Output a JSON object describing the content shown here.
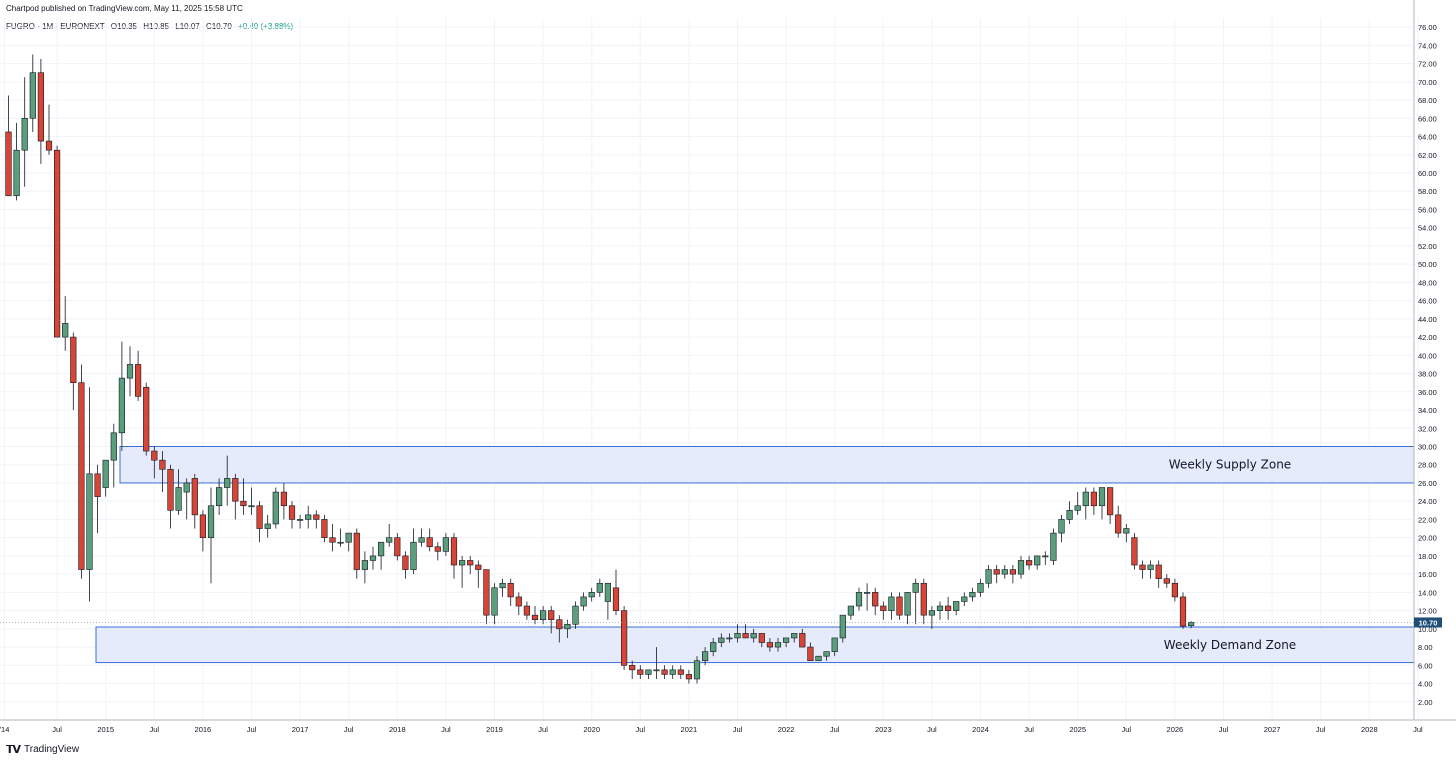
{
  "header": {
    "publisher": "Chartpod published on TradingView.com, May 11, 2025 15:58 UTC",
    "symbol": "FUGRO · 1M · EURONEXT",
    "open": "O10.35",
    "high": "H10.85",
    "low": "L10.07",
    "close": "C10.70",
    "change": "+0.40 (+3.88%)"
  },
  "footer": {
    "logo_mark": "𝗧𝗩",
    "logo_text": "TradingView"
  },
  "colors": {
    "up": "#5b9e7c",
    "down": "#d64536",
    "grid": "#f0f3fa",
    "zone_fill": "#e6ebfb",
    "zone_border": "#3a6fd6",
    "price_tag": "#1f4e79"
  },
  "chart_data": {
    "type": "candlestick",
    "title": "",
    "y_ticks": [
      "2.00",
      "4.00",
      "6.00",
      "8.00",
      "10.00",
      "12.00",
      "14.00",
      "16.00",
      "18.00",
      "20.00",
      "22.00",
      "24.00",
      "26.00",
      "28.00",
      "30.00",
      "32.00",
      "34.00",
      "36.00",
      "38.00",
      "40.00",
      "42.00",
      "44.00",
      "46.00",
      "48.00",
      "50.00",
      "52.00",
      "54.00",
      "56.00",
      "58.00",
      "60.00",
      "62.00",
      "64.00",
      "66.00",
      "68.00",
      "70.00",
      "72.00",
      "74.00",
      "76.00"
    ],
    "ylim": [
      0,
      77
    ],
    "x_ticks": [
      "'14",
      "Jul",
      "2015",
      "Jul",
      "2016",
      "Jul",
      "2017",
      "Jul",
      "2018",
      "Jul",
      "2019",
      "Jul",
      "2020",
      "Jul",
      "2021",
      "Jul",
      "2022",
      "Jul",
      "2023",
      "Jul",
      "2024",
      "Jul",
      "2025",
      "Jul",
      "2026",
      "Jul",
      "2027",
      "Jul",
      "2028",
      "Jul"
    ],
    "last_price": "10.70",
    "zones": [
      {
        "label": "Weekly Supply Zone",
        "low": 26.0,
        "high": 30.0
      },
      {
        "label": "Weekly Demand Zone",
        "low": 6.3,
        "high": 10.2
      }
    ],
    "candles": [
      [
        64.5,
        68.5,
        57.5,
        57.5
      ],
      [
        57.5,
        65.5,
        57.0,
        62.5
      ],
      [
        62.5,
        70.5,
        58.5,
        66.0
      ],
      [
        66.0,
        73.0,
        64.5,
        71.0
      ],
      [
        71.0,
        72.5,
        61.0,
        63.5
      ],
      [
        63.5,
        67.5,
        62.0,
        62.5
      ],
      [
        62.5,
        63.0,
        42.0,
        42.0
      ],
      [
        42.0,
        46.5,
        40.5,
        43.5
      ],
      [
        42.0,
        42.5,
        34.0,
        37.0
      ],
      [
        37.0,
        39.0,
        15.5,
        16.5
      ],
      [
        16.5,
        36.5,
        13.0,
        27.0
      ],
      [
        27.0,
        28.0,
        20.5,
        24.5
      ],
      [
        25.5,
        28.0,
        24.5,
        28.5
      ],
      [
        28.5,
        32.5,
        25.5,
        31.5
      ],
      [
        31.5,
        41.5,
        29.5,
        37.5
      ],
      [
        37.5,
        41.0,
        35.5,
        39.0
      ],
      [
        39.0,
        40.5,
        35.0,
        35.5
      ],
      [
        36.5,
        37.0,
        29.0,
        29.5
      ],
      [
        29.5,
        30.0,
        26.5,
        28.5
      ],
      [
        28.5,
        29.5,
        25.0,
        27.5
      ],
      [
        27.5,
        28.0,
        21.0,
        23.0
      ],
      [
        23.0,
        27.5,
        22.5,
        25.5
      ],
      [
        25.0,
        26.5,
        22.0,
        26.0
      ],
      [
        26.5,
        27.0,
        21.0,
        22.5
      ],
      [
        22.5,
        23.0,
        18.5,
        20.0
      ],
      [
        20.0,
        25.5,
        15.0,
        23.5
      ],
      [
        23.5,
        26.5,
        22.5,
        25.5
      ],
      [
        25.5,
        29.0,
        23.5,
        26.5
      ],
      [
        26.5,
        27.0,
        22.0,
        24.0
      ],
      [
        24.0,
        26.5,
        22.5,
        23.5
      ],
      [
        23.5,
        25.5,
        22.5,
        23.5
      ],
      [
        23.5,
        24.0,
        19.5,
        21.0
      ],
      [
        21.0,
        22.5,
        20.0,
        21.5
      ],
      [
        21.5,
        25.5,
        21.0,
        25.0
      ],
      [
        25.0,
        26.0,
        22.0,
        23.5
      ],
      [
        23.5,
        24.0,
        21.0,
        22.0
      ],
      [
        22.0,
        22.5,
        21.0,
        22.0
      ],
      [
        22.0,
        23.5,
        21.0,
        22.5
      ],
      [
        22.5,
        23.0,
        21.0,
        22.0
      ],
      [
        22.0,
        22.5,
        19.5,
        20.0
      ],
      [
        20.0,
        21.5,
        18.5,
        19.5
      ],
      [
        19.5,
        21.0,
        19.0,
        19.5
      ],
      [
        19.5,
        20.0,
        18.5,
        20.5
      ],
      [
        20.5,
        21.0,
        15.5,
        16.5
      ],
      [
        16.5,
        18.5,
        15.0,
        17.5
      ],
      [
        17.5,
        19.0,
        16.5,
        18.0
      ],
      [
        18.0,
        19.5,
        16.5,
        19.5
      ],
      [
        19.5,
        21.5,
        19.0,
        20.0
      ],
      [
        20.0,
        20.5,
        17.5,
        18.0
      ],
      [
        18.0,
        18.5,
        15.5,
        16.5
      ],
      [
        16.5,
        21.0,
        16.0,
        19.5
      ],
      [
        19.5,
        21.0,
        19.0,
        20.0
      ],
      [
        20.0,
        21.0,
        18.5,
        19.0
      ],
      [
        19.0,
        19.5,
        17.5,
        18.5
      ],
      [
        18.5,
        20.5,
        18.0,
        20.0
      ],
      [
        20.0,
        20.5,
        15.5,
        17.0
      ],
      [
        17.0,
        18.0,
        14.5,
        17.5
      ],
      [
        17.5,
        18.0,
        16.0,
        17.0
      ],
      [
        17.0,
        17.5,
        14.5,
        16.5
      ],
      [
        16.5,
        16.5,
        10.5,
        11.5
      ],
      [
        11.5,
        15.0,
        10.5,
        14.5
      ],
      [
        14.5,
        15.5,
        13.5,
        15.0
      ],
      [
        15.0,
        15.5,
        12.5,
        13.5
      ],
      [
        13.5,
        14.0,
        11.5,
        12.5
      ],
      [
        12.5,
        13.0,
        11.0,
        11.5
      ],
      [
        11.5,
        12.5,
        10.5,
        11.0
      ],
      [
        11.0,
        12.5,
        10.5,
        12.0
      ],
      [
        12.0,
        12.5,
        9.5,
        11.0
      ],
      [
        11.0,
        11.5,
        8.5,
        10.0
      ],
      [
        10.0,
        11.0,
        9.0,
        10.5
      ],
      [
        10.5,
        13.0,
        10.0,
        12.5
      ],
      [
        12.5,
        14.0,
        12.0,
        13.5
      ],
      [
        13.5,
        14.5,
        13.0,
        14.0
      ],
      [
        14.0,
        15.5,
        13.5,
        15.0
      ],
      [
        13.0,
        15.0,
        11.0,
        15.0
      ],
      [
        14.5,
        16.5,
        11.5,
        12.0
      ],
      [
        12.0,
        12.5,
        5.5,
        6.0
      ],
      [
        6.0,
        6.5,
        4.5,
        5.5
      ],
      [
        5.5,
        6.0,
        4.5,
        5.0
      ],
      [
        5.0,
        5.5,
        4.5,
        5.5
      ],
      [
        5.5,
        8.0,
        4.5,
        5.5
      ],
      [
        5.5,
        6.0,
        4.5,
        5.0
      ],
      [
        5.0,
        6.0,
        4.5,
        5.5
      ],
      [
        5.5,
        6.0,
        4.5,
        5.0
      ],
      [
        5.0,
        5.5,
        4.0,
        4.5
      ],
      [
        4.5,
        7.0,
        4.0,
        6.5
      ],
      [
        6.5,
        8.0,
        6.0,
        7.5
      ],
      [
        7.5,
        9.0,
        7.0,
        8.5
      ],
      [
        8.5,
        9.5,
        8.0,
        9.0
      ],
      [
        9.0,
        9.5,
        8.5,
        9.0
      ],
      [
        9.0,
        10.5,
        8.5,
        9.5
      ],
      [
        9.5,
        10.5,
        9.0,
        9.0
      ],
      [
        9.0,
        10.0,
        8.5,
        9.5
      ],
      [
        9.5,
        9.5,
        8.0,
        8.5
      ],
      [
        8.5,
        9.0,
        7.5,
        8.0
      ],
      [
        8.0,
        9.0,
        7.5,
        8.5
      ],
      [
        8.5,
        9.0,
        8.0,
        9.0
      ],
      [
        9.0,
        9.5,
        8.5,
        9.5
      ],
      [
        9.5,
        10.0,
        8.0,
        8.0
      ],
      [
        8.0,
        8.5,
        6.5,
        6.5
      ],
      [
        6.5,
        7.0,
        6.5,
        7.0
      ],
      [
        7.0,
        7.5,
        6.5,
        7.5
      ],
      [
        7.5,
        9.0,
        7.0,
        9.0
      ],
      [
        9.0,
        11.5,
        8.5,
        11.5
      ],
      [
        11.5,
        12.5,
        11.0,
        12.5
      ],
      [
        12.5,
        14.5,
        12.0,
        14.0
      ],
      [
        14.0,
        15.0,
        12.0,
        14.0
      ],
      [
        14.0,
        14.5,
        11.5,
        12.5
      ],
      [
        12.5,
        13.0,
        11.0,
        12.0
      ],
      [
        12.0,
        14.0,
        11.0,
        13.5
      ],
      [
        13.5,
        14.0,
        11.0,
        11.5
      ],
      [
        11.5,
        14.0,
        10.5,
        14.0
      ],
      [
        14.0,
        15.5,
        10.5,
        15.0
      ],
      [
        15.0,
        15.5,
        10.5,
        11.5
      ],
      [
        11.5,
        12.5,
        10.0,
        12.0
      ],
      [
        12.0,
        13.0,
        11.0,
        12.5
      ],
      [
        12.5,
        13.5,
        11.0,
        12.0
      ],
      [
        12.0,
        13.0,
        11.5,
        13.0
      ],
      [
        13.0,
        14.0,
        12.5,
        13.5
      ],
      [
        13.5,
        14.5,
        13.0,
        14.0
      ],
      [
        14.0,
        15.5,
        13.5,
        15.0
      ],
      [
        15.0,
        17.0,
        14.5,
        16.5
      ],
      [
        16.5,
        17.0,
        15.0,
        16.0
      ],
      [
        16.0,
        17.0,
        15.5,
        16.5
      ],
      [
        16.5,
        17.0,
        15.0,
        16.0
      ],
      [
        16.0,
        18.0,
        15.5,
        17.5
      ],
      [
        17.5,
        18.0,
        16.5,
        17.0
      ],
      [
        17.0,
        18.0,
        16.5,
        18.0
      ],
      [
        18.0,
        18.5,
        17.0,
        18.0
      ],
      [
        17.5,
        21.0,
        17.0,
        20.5
      ],
      [
        20.5,
        22.5,
        19.5,
        22.0
      ],
      [
        22.0,
        24.0,
        21.5,
        23.0
      ],
      [
        23.0,
        25.0,
        22.5,
        23.5
      ],
      [
        23.5,
        25.5,
        22.0,
        25.0
      ],
      [
        25.0,
        25.5,
        22.5,
        23.5
      ],
      [
        23.5,
        25.5,
        22.0,
        25.5
      ],
      [
        25.5,
        25.5,
        21.5,
        22.5
      ],
      [
        22.5,
        23.5,
        20.0,
        20.5
      ],
      [
        20.5,
        21.5,
        19.5,
        21.0
      ],
      [
        20.0,
        20.5,
        16.5,
        17.0
      ],
      [
        17.0,
        17.5,
        15.5,
        16.5
      ],
      [
        16.5,
        17.5,
        15.5,
        17.0
      ],
      [
        17.0,
        17.5,
        14.5,
        15.5
      ],
      [
        15.5,
        16.0,
        14.5,
        15.0
      ],
      [
        15.0,
        15.5,
        13.0,
        13.5
      ],
      [
        13.5,
        14.0,
        10.0,
        10.3
      ],
      [
        10.35,
        10.85,
        10.07,
        10.7
      ]
    ],
    "annotations": [
      "Weekly Supply Zone",
      "Weekly Demand Zone"
    ]
  }
}
